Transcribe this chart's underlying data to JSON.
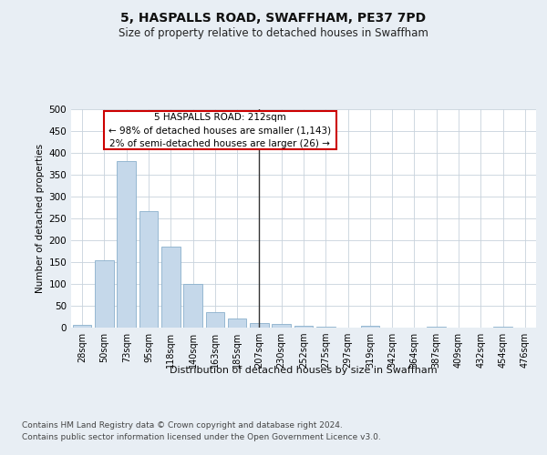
{
  "title1": "5, HASPALLS ROAD, SWAFFHAM, PE37 7PD",
  "title2": "Size of property relative to detached houses in Swaffham",
  "xlabel": "Distribution of detached houses by size in Swaffham",
  "ylabel": "Number of detached properties",
  "bar_color": "#c5d8ea",
  "bar_edge_color": "#8ab0cc",
  "vline_color": "#333333",
  "vline_x_idx": 8,
  "annotation_line1": "5 HASPALLS ROAD: 212sqm",
  "annotation_line2": "← 98% of detached houses are smaller (1,143)",
  "annotation_line3": "2% of semi-detached houses are larger (26) →",
  "annotation_box_edgecolor": "#cc0000",
  "categories": [
    "28sqm",
    "50sqm",
    "73sqm",
    "95sqm",
    "118sqm",
    "140sqm",
    "163sqm",
    "185sqm",
    "207sqm",
    "230sqm",
    "252sqm",
    "275sqm",
    "297sqm",
    "319sqm",
    "342sqm",
    "364sqm",
    "387sqm",
    "409sqm",
    "432sqm",
    "454sqm",
    "476sqm"
  ],
  "values": [
    6,
    155,
    381,
    266,
    185,
    101,
    36,
    21,
    11,
    9,
    4,
    2,
    0,
    4,
    0,
    0,
    3,
    0,
    0,
    3,
    0
  ],
  "ylim": [
    0,
    500
  ],
  "yticks": [
    0,
    50,
    100,
    150,
    200,
    250,
    300,
    350,
    400,
    450,
    500
  ],
  "footer_line1": "Contains HM Land Registry data © Crown copyright and database right 2024.",
  "footer_line2": "Contains public sector information licensed under the Open Government Licence v3.0.",
  "fig_bg_color": "#e8eef4",
  "plot_bg_color": "#ffffff",
  "grid_color": "#c8d2dc"
}
